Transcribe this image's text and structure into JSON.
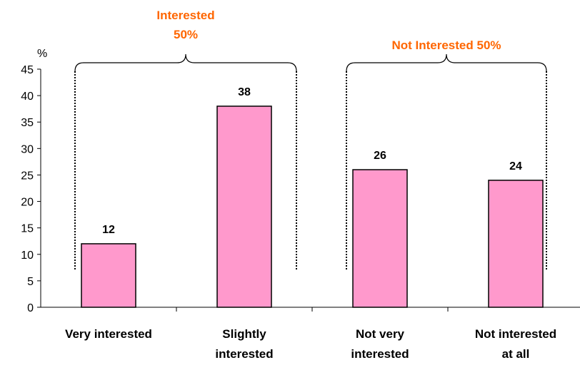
{
  "chart_data": {
    "type": "bar",
    "categories": [
      [
        "Very interested"
      ],
      [
        "Slightly",
        "interested"
      ],
      [
        "Not very",
        "interested"
      ],
      [
        "Not interested",
        "at all"
      ]
    ],
    "values": [
      12,
      38,
      26,
      24
    ],
    "data_labels": [
      "12",
      "38",
      "26",
      "24"
    ],
    "ylabel": "%",
    "ylim": [
      0,
      45
    ],
    "yticks": [
      0,
      5,
      10,
      15,
      20,
      25,
      30,
      35,
      40,
      45
    ],
    "grid": false,
    "legend": "none",
    "groups": [
      {
        "lines": [
          "Interested",
          "50%"
        ],
        "categories": [
          0,
          1
        ]
      },
      {
        "lines": [
          "Not Interested 50%"
        ],
        "categories": [
          2,
          3
        ]
      }
    ]
  },
  "colors": {
    "bar_fill": "#ff99cc",
    "bar_stroke": "#000000",
    "group_label": "#ff6600",
    "axis": "#000000"
  }
}
